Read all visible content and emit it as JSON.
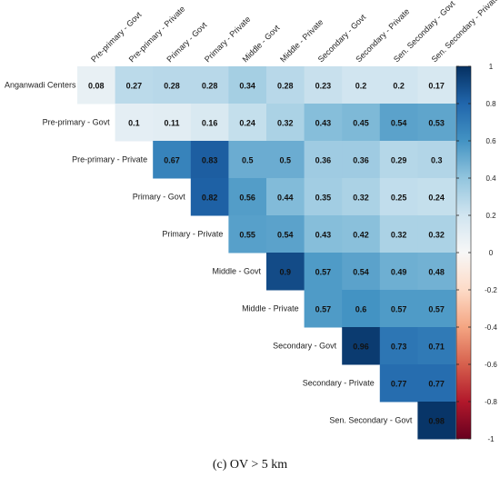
{
  "chart_data": {
    "type": "heatmap",
    "subtype": "upper-triangular correlation matrix",
    "columns": [
      "Pre-primary - Govt",
      "Pre-primary - Private",
      "Primary - Govt",
      "Primary - Private",
      "Middle - Govt",
      "Middle - Private",
      "Secondary - Govt",
      "Secondary - Private",
      "Sen. Secondary - Govt",
      "Sen. Secondary - Private"
    ],
    "rows": [
      "Anganwadi Centers",
      "Pre-primary - Govt",
      "Pre-primary - Private",
      "Primary - Govt",
      "Primary - Private",
      "Middle - Govt",
      "Middle - Private",
      "Secondary - Govt",
      "Secondary - Private",
      "Sen. Secondary - Govt"
    ],
    "values": [
      [
        0.08,
        0.27,
        0.28,
        0.28,
        0.34,
        0.28,
        0.23,
        0.2,
        0.2,
        0.17
      ],
      [
        0.1,
        0.11,
        0.16,
        0.24,
        0.32,
        0.43,
        0.45,
        0.54,
        0.53
      ],
      [
        0.67,
        0.83,
        0.5,
        0.5,
        0.36,
        0.36,
        0.29,
        0.3
      ],
      [
        0.82,
        0.56,
        0.44,
        0.35,
        0.32,
        0.25,
        0.24
      ],
      [
        0.55,
        0.54,
        0.43,
        0.42,
        0.32,
        0.32
      ],
      [
        0.9,
        0.57,
        0.54,
        0.49,
        0.48
      ],
      [
        0.57,
        0.6,
        0.57,
        0.57
      ],
      [
        0.96,
        0.73,
        0.71
      ],
      [
        0.77,
        0.77
      ],
      [
        0.98
      ]
    ],
    "value_labels": [
      [
        "0.08",
        "0.27",
        "0.28",
        "0.28",
        "0.34",
        "0.28",
        "0.23",
        "0.2",
        "0.2",
        "0.17"
      ],
      [
        "0.1",
        "0.11",
        "0.16",
        "0.24",
        "0.32",
        "0.43",
        "0.45",
        "0.54",
        "0.53"
      ],
      [
        "0.67",
        "0.83",
        "0.5",
        "0.5",
        "0.36",
        "0.36",
        "0.29",
        "0.3"
      ],
      [
        "0.82",
        "0.56",
        "0.44",
        "0.35",
        "0.32",
        "0.25",
        "0.24"
      ],
      [
        "0.55",
        "0.54",
        "0.43",
        "0.42",
        "0.32",
        "0.32"
      ],
      [
        "0.9",
        "0.57",
        "0.54",
        "0.49",
        "0.48"
      ],
      [
        "0.57",
        "0.6",
        "0.57",
        "0.57"
      ],
      [
        "0.96",
        "0.73",
        "0.71"
      ],
      [
        "0.77",
        "0.77"
      ],
      [
        "0.98"
      ]
    ],
    "color_scale": {
      "range": [
        -1,
        1
      ],
      "ticks": [
        1,
        0.8,
        0.6,
        0.4,
        0.2,
        0,
        -0.2,
        -0.4,
        -0.6,
        -0.8,
        -1
      ],
      "tick_labels": [
        "1",
        "0.8",
        "0.6",
        "0.4",
        "0.2",
        "0",
        "-0.2",
        "-0.4",
        "-0.6",
        "-0.8",
        "-1"
      ],
      "negative_end_color": "#67001f",
      "neutral_color": "#f7f7f7",
      "positive_end_color": "#053061",
      "palette": [
        "#67001f",
        "#b2182b",
        "#d6604d",
        "#f4a582",
        "#fddbc7",
        "#f7f7f7",
        "#d1e5f0",
        "#92c5de",
        "#4393c3",
        "#2166ac",
        "#053061"
      ]
    },
    "legend_position": "right"
  },
  "caption": "(c) OV > 5 km"
}
